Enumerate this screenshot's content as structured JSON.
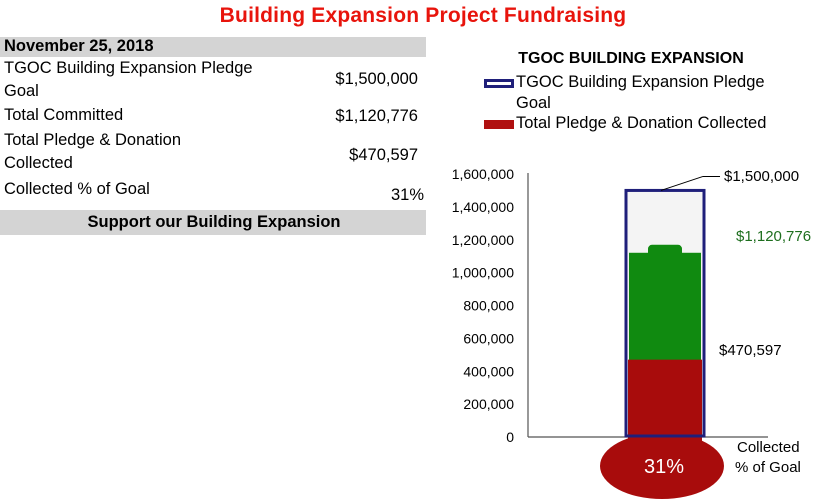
{
  "title": "Building Expansion Project Fundraising",
  "date": "November 25, 2018",
  "rows": [
    {
      "label_prefix": "TGOC",
      "label": " Building Expansion  Pledge",
      "label_line2": "Goal",
      "value": "$1,500,000"
    },
    {
      "label": "Total Committed",
      "value": "$1,120,776"
    },
    {
      "label": "Total Pledge & Donation",
      "label_line2": "Collected",
      "value": "$470,597"
    },
    {
      "label": "Collected % of Goal",
      "value": "31%"
    }
  ],
  "support_text": "Support our Building Expansion",
  "chart_data": {
    "type": "bar",
    "title": "TGOC BUILDING EXPANSION",
    "ylim": [
      0,
      1600000
    ],
    "yticks": [
      0,
      200000,
      400000,
      600000,
      800000,
      1000000,
      1200000,
      1400000,
      1600000
    ],
    "ytick_labels": [
      "0",
      "200,000",
      "400,000",
      "600,000",
      "800,000",
      "1,000,000",
      "1,200,000",
      "1,400,000",
      "1,600,000"
    ],
    "legend": [
      {
        "name_line1": "TGOC Building Expansion  Pledge",
        "name_line2": "Goal",
        "color": "#1f1f7a",
        "style": "outline"
      },
      {
        "name_line1": "Total Pledge & Donation Collected",
        "name_line2": "",
        "color": "#b01010",
        "style": "fill"
      }
    ],
    "series": {
      "goal": 1500000,
      "committed": 1120776,
      "collected": 470597
    },
    "annotations": {
      "goal_label": "$1,500,000",
      "committed_label": "$1,120,776",
      "collected_label": "$470,597",
      "percent_label": "31%",
      "percent_caption_line1": "Collected",
      "percent_caption_line2": "% of Goal"
    },
    "colors": {
      "goal_outline": "#1f1f7a",
      "committed": "#108a10",
      "collected": "#a80c0c",
      "committed_text": "#1e6e1e",
      "axis": "#555555",
      "tube_bg": "#f4f4f4"
    }
  }
}
